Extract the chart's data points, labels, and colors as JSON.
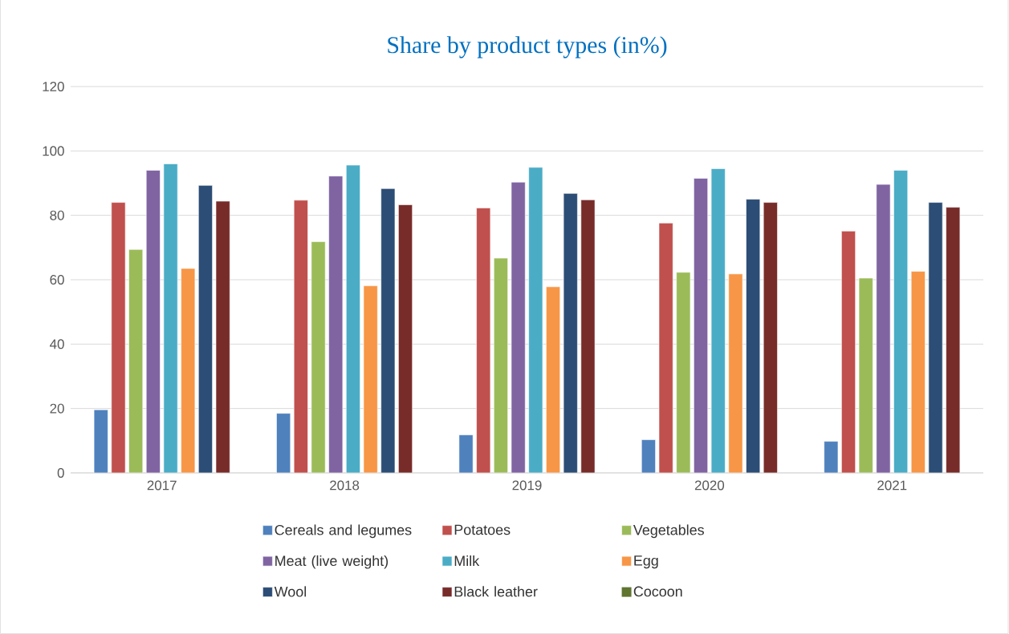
{
  "chart_data": {
    "type": "bar",
    "title": "Share by product types (in%)",
    "categories": [
      "2017",
      "2018",
      "2019",
      "2020",
      "2021"
    ],
    "series": [
      {
        "name": "Cereals and legumes",
        "color": "#4f81bd",
        "values": [
          19.6,
          18.5,
          11.8,
          10.3,
          9.8
        ]
      },
      {
        "name": "Potatoes",
        "color": "#c0504d",
        "values": [
          84.0,
          84.7,
          82.3,
          77.6,
          75.1
        ]
      },
      {
        "name": "Vegetables",
        "color": "#9bbb59",
        "values": [
          69.4,
          71.8,
          66.7,
          62.3,
          60.5
        ]
      },
      {
        "name": "Meat (live weight)",
        "color": "#8064a2",
        "values": [
          94.0,
          92.2,
          90.3,
          91.5,
          89.6
        ]
      },
      {
        "name": "Milk",
        "color": "#4bacc6",
        "values": [
          96.0,
          95.6,
          94.9,
          94.5,
          94.0
        ]
      },
      {
        "name": "Egg",
        "color": "#f79646",
        "values": [
          63.5,
          58.1,
          57.8,
          61.8,
          62.6
        ]
      },
      {
        "name": "Wool",
        "color": "#2c4d75",
        "values": [
          89.3,
          88.3,
          86.8,
          85.0,
          84.0
        ]
      },
      {
        "name": "Black leather",
        "color": "#772c2a",
        "values": [
          84.4,
          83.3,
          84.8,
          84.0,
          82.5
        ]
      },
      {
        "name": "Cocoon",
        "color": "#5f7530",
        "values": [
          null,
          null,
          null,
          null,
          null
        ]
      }
    ],
    "ylim": [
      0,
      120
    ],
    "yticks": [
      0,
      20,
      40,
      60,
      80,
      100,
      120
    ],
    "grid": "y",
    "legend": "bottom"
  }
}
